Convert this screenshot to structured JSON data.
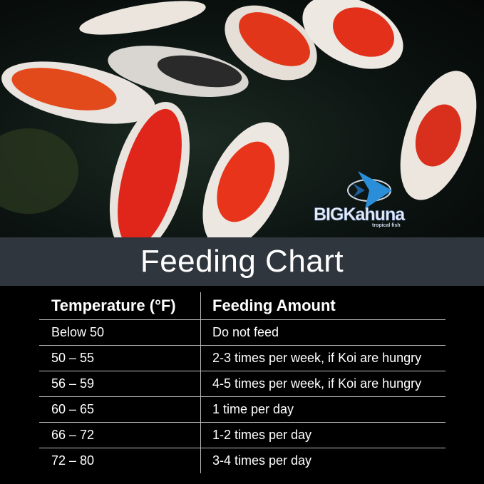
{
  "logo": {
    "brand": "BIGKahuna",
    "tagline": "tropical fish"
  },
  "banner": {
    "title": "Feeding Chart"
  },
  "table": {
    "headers": [
      "Temperature (°F)",
      "Feeding Amount"
    ],
    "rows": [
      [
        "Below 50",
        "Do not feed"
      ],
      [
        "50 – 55",
        "2-3 times per week, if Koi are hungry"
      ],
      [
        "56 – 59",
        "4-5 times per week, if Koi are hungry"
      ],
      [
        "60 – 65",
        "1 time per day"
      ],
      [
        "66 – 72",
        "1-2 times per day"
      ],
      [
        "72 – 80",
        "3-4 times per day"
      ]
    ]
  },
  "colors": {
    "banner": "#30363e",
    "background": "#000000",
    "koi_orange": "#e8361a",
    "logo_blue": "#2a8fd8"
  }
}
